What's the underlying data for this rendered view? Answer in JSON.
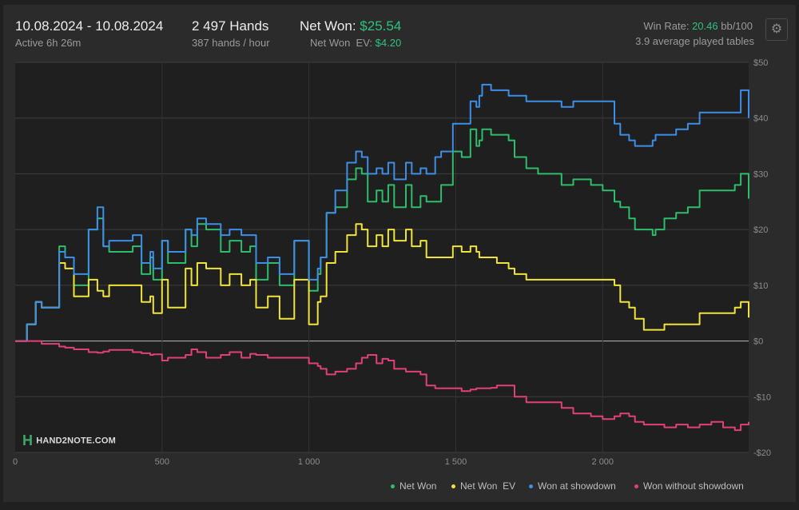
{
  "header": {
    "date_range": "10.08.2024 - 10.08.2024",
    "active": "Active 6h 26m",
    "hands": "2 497 Hands",
    "hands_per_hour": "387 hands / hour",
    "net_won_label": "Net Won:",
    "net_won_value": "$25.54",
    "net_won_ev_label": "Net Won  EV:",
    "net_won_ev_value": "$4.20",
    "win_rate_label": "Win Rate:",
    "win_rate_value": "20.46",
    "win_rate_unit": "bb/100",
    "avg_tables": "3.9 average played tables"
  },
  "settings_icon": "gear-icon",
  "logo_text": "HAND2NOTE.COM",
  "colors": {
    "net_won": "#2ebd6a",
    "net_won_ev": "#f0e33a",
    "showdown": "#3d8ee6",
    "non_showdown": "#e0407a",
    "positive_text": "#2ec27e"
  },
  "chart_data": {
    "type": "line",
    "xlim": [
      0,
      2497
    ],
    "ylim": [
      -20,
      50
    ],
    "x_ticks": [
      0,
      500,
      1000,
      1500,
      2000
    ],
    "x_tick_labels": [
      "0",
      "500",
      "1 000",
      "1 500",
      "2 000"
    ],
    "y_ticks": [
      50,
      40,
      30,
      20,
      10,
      0,
      -10,
      -20
    ],
    "y_tick_labels": [
      "$50",
      "$40",
      "$30",
      "$20",
      "$10",
      "$0",
      "-$10",
      "-$20"
    ],
    "legend_position": "bottom-right",
    "series": [
      {
        "name": "Net Won",
        "color": "#2ebd6a",
        "x": [
          0,
          40,
          70,
          90,
          150,
          170,
          200,
          250,
          280,
          300,
          320,
          400,
          430,
          460,
          470,
          500,
          520,
          580,
          600,
          620,
          650,
          700,
          730,
          770,
          800,
          820,
          860,
          900,
          950,
          1000,
          1030,
          1040,
          1060,
          1090,
          1130,
          1160,
          1180,
          1200,
          1230,
          1250,
          1270,
          1290,
          1330,
          1350,
          1380,
          1400,
          1430,
          1450,
          1490,
          1520,
          1550,
          1570,
          1580,
          1590,
          1620,
          1640,
          1680,
          1700,
          1740,
          1780,
          1820,
          1860,
          1900,
          1960,
          2000,
          2040,
          2060,
          2090,
          2110,
          2140,
          2170,
          2180,
          2210,
          2250,
          2290,
          2330,
          2370,
          2410,
          2450,
          2470,
          2497
        ],
        "y": [
          0,
          3,
          7,
          6,
          17,
          15,
          10,
          20,
          22,
          17,
          16,
          17,
          12,
          15,
          11,
          18,
          14,
          20,
          17,
          21,
          20,
          16,
          18,
          16,
          17,
          11,
          14,
          10,
          18,
          9,
          12,
          15,
          23,
          24,
          29,
          31,
          30,
          25,
          27,
          25,
          28,
          24,
          28,
          24,
          26,
          25,
          25,
          28,
          34,
          33,
          38,
          35,
          36,
          38,
          37,
          37,
          36,
          33,
          31,
          30,
          30,
          28,
          29,
          28,
          27,
          25,
          24,
          22,
          20,
          20,
          19,
          20,
          22,
          23,
          24,
          27,
          27,
          27,
          28,
          30,
          25.54
        ]
      },
      {
        "name": "Net Won  EV",
        "color": "#f0e33a",
        "x": [
          0,
          40,
          70,
          90,
          150,
          170,
          200,
          250,
          280,
          300,
          320,
          400,
          430,
          460,
          470,
          500,
          520,
          580,
          600,
          620,
          650,
          700,
          730,
          770,
          800,
          820,
          860,
          900,
          950,
          1000,
          1030,
          1040,
          1060,
          1090,
          1130,
          1160,
          1180,
          1200,
          1230,
          1250,
          1270,
          1290,
          1330,
          1350,
          1380,
          1400,
          1430,
          1450,
          1490,
          1520,
          1550,
          1570,
          1580,
          1590,
          1620,
          1640,
          1680,
          1700,
          1740,
          1780,
          1820,
          1860,
          1900,
          1960,
          2000,
          2040,
          2060,
          2090,
          2110,
          2140,
          2170,
          2180,
          2210,
          2250,
          2290,
          2330,
          2370,
          2410,
          2450,
          2470,
          2497
        ],
        "y": [
          0,
          3,
          7,
          6,
          14,
          13,
          8,
          11,
          9,
          8,
          10,
          10,
          7,
          8,
          5,
          11,
          6,
          13,
          10,
          14,
          13,
          10,
          12,
          10,
          11,
          6,
          8,
          4,
          11,
          3,
          7,
          8,
          14,
          16,
          19,
          21,
          20,
          17,
          19,
          17,
          20,
          18,
          20,
          17,
          18,
          15,
          15,
          15,
          17,
          16,
          17,
          16,
          15,
          15,
          15,
          14,
          13,
          12,
          11,
          11,
          11,
          11,
          11,
          11,
          11,
          10,
          7,
          6,
          4,
          2,
          2,
          2,
          3,
          3,
          3,
          5,
          5,
          5,
          6,
          7,
          4.2
        ]
      },
      {
        "name": "Won at showdown",
        "color": "#3d8ee6",
        "x": [
          0,
          40,
          70,
          90,
          150,
          170,
          200,
          250,
          280,
          300,
          320,
          400,
          430,
          460,
          470,
          500,
          520,
          580,
          600,
          620,
          650,
          700,
          730,
          770,
          800,
          820,
          860,
          900,
          950,
          1000,
          1030,
          1040,
          1060,
          1090,
          1130,
          1160,
          1180,
          1200,
          1230,
          1250,
          1270,
          1290,
          1330,
          1350,
          1380,
          1400,
          1430,
          1450,
          1490,
          1520,
          1550,
          1570,
          1580,
          1590,
          1620,
          1640,
          1680,
          1700,
          1740,
          1780,
          1820,
          1860,
          1900,
          1960,
          2000,
          2040,
          2060,
          2090,
          2110,
          2140,
          2170,
          2180,
          2210,
          2250,
          2290,
          2330,
          2370,
          2410,
          2450,
          2470,
          2497
        ],
        "y": [
          0,
          3,
          7,
          6,
          16,
          15,
          12,
          20,
          24,
          17,
          18,
          19,
          14,
          16,
          13,
          18,
          16,
          20,
          19,
          22,
          21,
          19,
          20,
          19,
          19,
          14,
          15,
          12,
          18,
          11,
          13,
          15,
          23,
          27,
          32,
          34,
          33,
          30,
          31,
          30,
          32,
          29,
          32,
          30,
          31,
          30,
          33,
          34,
          39,
          39,
          43,
          42,
          44,
          46,
          45,
          45,
          44,
          44,
          43,
          43,
          43,
          42,
          43,
          43,
          43,
          39,
          37,
          36,
          35,
          35,
          36,
          37,
          37,
          38,
          39,
          41,
          41,
          41,
          41,
          45,
          40
        ]
      },
      {
        "name": "Won without showdown",
        "color": "#e0407a",
        "x": [
          0,
          40,
          70,
          90,
          150,
          170,
          200,
          250,
          280,
          300,
          320,
          400,
          430,
          460,
          470,
          500,
          520,
          580,
          600,
          620,
          650,
          700,
          730,
          770,
          800,
          820,
          860,
          900,
          950,
          1000,
          1030,
          1040,
          1060,
          1090,
          1130,
          1160,
          1180,
          1200,
          1230,
          1250,
          1270,
          1290,
          1330,
          1350,
          1380,
          1400,
          1430,
          1450,
          1490,
          1520,
          1550,
          1570,
          1580,
          1590,
          1620,
          1640,
          1680,
          1700,
          1740,
          1780,
          1820,
          1860,
          1900,
          1960,
          2000,
          2040,
          2060,
          2090,
          2110,
          2140,
          2170,
          2180,
          2210,
          2250,
          2290,
          2330,
          2370,
          2410,
          2450,
          2470,
          2497
        ],
        "y": [
          0,
          0,
          0,
          -0.5,
          -1,
          -1.2,
          -1.5,
          -2,
          -2.1,
          -1.9,
          -1.6,
          -2,
          -2.2,
          -2.5,
          -2.4,
          -3.5,
          -3,
          -2.5,
          -1.5,
          -2,
          -3,
          -2.5,
          -2,
          -3,
          -2.3,
          -2.5,
          -3,
          -3,
          -3,
          -4,
          -4.5,
          -5,
          -6,
          -5.5,
          -5,
          -4,
          -3,
          -2.5,
          -4,
          -3.2,
          -3.5,
          -5,
          -5.5,
          -5.5,
          -6,
          -8,
          -8.5,
          -8.5,
          -8.5,
          -9,
          -8.7,
          -8.5,
          -8.5,
          -8.5,
          -8.4,
          -8,
          -8,
          -10,
          -11,
          -11,
          -11,
          -12,
          -13,
          -13.5,
          -14,
          -13.5,
          -13,
          -13.5,
          -14.5,
          -15,
          -15,
          -15,
          -15.5,
          -15,
          -15.5,
          -15,
          -14.5,
          -15.5,
          -16,
          -15,
          -14.5
        ]
      }
    ]
  },
  "legend": [
    {
      "label": "Net Won",
      "color": "#2ebd6a"
    },
    {
      "label": "Net Won  EV",
      "color": "#f0e33a"
    },
    {
      "label": "Won at showdown",
      "color": "#3d8ee6"
    },
    {
      "label": "Won without showdown",
      "color": "#e0407a"
    }
  ]
}
